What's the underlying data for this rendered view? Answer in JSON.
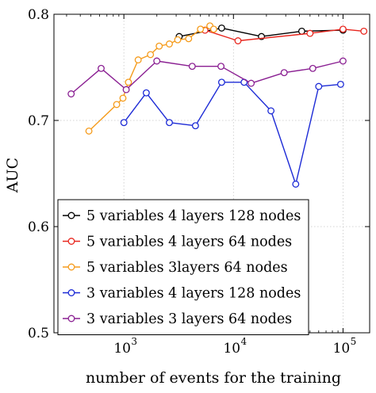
{
  "chart_data": {
    "type": "line",
    "xlabel": "number of events for the training",
    "ylabel": "AUC",
    "xscale": "log",
    "xlim": [
      230,
      175000
    ],
    "ylim": [
      0.5,
      0.8
    ],
    "grid": true,
    "legend_position": "bottom-left",
    "x_ticks": [
      {
        "value": 1000,
        "label": "10",
        "exp": "3"
      },
      {
        "value": 10000,
        "label": "10",
        "exp": "4"
      },
      {
        "value": 100000,
        "label": "10",
        "exp": "5"
      }
    ],
    "y_ticks": [
      {
        "value": 0.5,
        "label": "0.5"
      },
      {
        "value": 0.6,
        "label": "0.6"
      },
      {
        "value": 0.7,
        "label": "0.7"
      },
      {
        "value": 0.8,
        "label": "0.8"
      }
    ],
    "series": [
      {
        "name": "5 variables 4 layers 128 nodes",
        "color": "#000000",
        "points": [
          [
            3200,
            0.779
          ],
          [
            7800,
            0.787
          ],
          [
            18000,
            0.779
          ],
          [
            42000,
            0.784
          ],
          [
            100000,
            0.785
          ]
        ]
      },
      {
        "name": "5 variables 4 layers 64 nodes",
        "color": "#e8261e",
        "points": [
          [
            5500,
            0.785
          ],
          [
            11000,
            0.775
          ],
          [
            50000,
            0.782
          ],
          [
            100000,
            0.786
          ],
          [
            155000,
            0.784
          ]
        ]
      },
      {
        "name": "5 variables 3layers 64 nodes",
        "color": "#f59b1b",
        "points": [
          [
            480,
            0.69
          ],
          [
            860,
            0.715
          ],
          [
            980,
            0.721
          ],
          [
            1100,
            0.736
          ],
          [
            1350,
            0.757
          ],
          [
            1750,
            0.762
          ],
          [
            2100,
            0.77
          ],
          [
            2600,
            0.772
          ],
          [
            3100,
            0.776
          ],
          [
            3900,
            0.777
          ],
          [
            5000,
            0.786
          ],
          [
            6100,
            0.789
          ],
          [
            6600,
            0.786
          ]
        ]
      },
      {
        "name": "3 variables 4 layers 128 nodes",
        "color": "#1d2bd6",
        "points": [
          [
            1000,
            0.698
          ],
          [
            1600,
            0.726
          ],
          [
            2600,
            0.698
          ],
          [
            4500,
            0.695
          ],
          [
            7800,
            0.736
          ],
          [
            12500,
            0.736
          ],
          [
            22000,
            0.709
          ],
          [
            37000,
            0.64
          ],
          [
            60000,
            0.732
          ],
          [
            95000,
            0.734
          ]
        ]
      },
      {
        "name": "3 variables 3 layers 64 nodes",
        "color": "#8a1f92",
        "points": [
          [
            330,
            0.725
          ],
          [
            620,
            0.749
          ],
          [
            1050,
            0.729
          ],
          [
            2000,
            0.756
          ],
          [
            4200,
            0.751
          ],
          [
            7700,
            0.751
          ],
          [
            14500,
            0.735
          ],
          [
            29000,
            0.745
          ],
          [
            53000,
            0.749
          ],
          [
            100000,
            0.756
          ]
        ]
      }
    ]
  }
}
